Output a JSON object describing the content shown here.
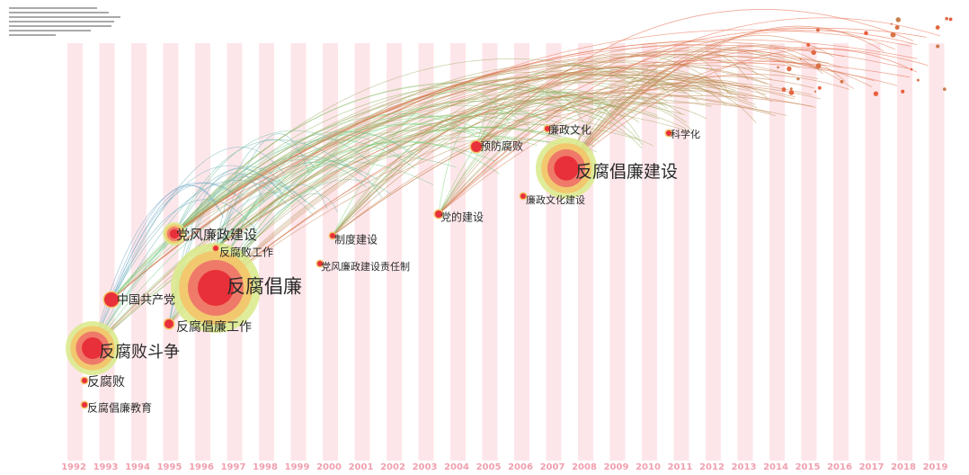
{
  "years": [
    "1992",
    "1993",
    "1994",
    "1995",
    "1996",
    "1997",
    "1998",
    "1999",
    "2000",
    "2001",
    "2002",
    "2003",
    "2004",
    "2005",
    "2006",
    "2007",
    "2008",
    "2009",
    "2010",
    "2011",
    "2012",
    "2013",
    "2014",
    "2015",
    "2016",
    "2017",
    "2018",
    "2019"
  ],
  "keywords": [
    {
      "id": "k1",
      "label": "反腐倡廉建设",
      "year": "2007",
      "size": "large"
    },
    {
      "id": "k2",
      "label": "反腐倡廉",
      "year": "1996",
      "size": "large"
    },
    {
      "id": "k3",
      "label": "反腐败斗争",
      "year": "1992",
      "size": "large"
    },
    {
      "id": "k4",
      "label": "党风廉政建设",
      "year": "1995",
      "size": "medium"
    },
    {
      "id": "k5",
      "label": "中国共产党",
      "year": "1993",
      "size": "medium"
    },
    {
      "id": "k6",
      "label": "反腐倡廉工作",
      "year": "1995",
      "size": "small"
    },
    {
      "id": "k7",
      "label": "反腐败",
      "year": "1992",
      "size": "small"
    },
    {
      "id": "k8",
      "label": "反腐倡廉教育",
      "year": "1992",
      "size": "small"
    },
    {
      "id": "k9",
      "label": "反腐败工作",
      "year": "1997",
      "size": "small"
    },
    {
      "id": "k10",
      "label": "制度建设",
      "year": "2000",
      "size": "small"
    },
    {
      "id": "k11",
      "label": "党风廉政建设责任制",
      "year": "1999",
      "size": "small"
    },
    {
      "id": "k12",
      "label": "党的建设",
      "year": "2004",
      "size": "small"
    },
    {
      "id": "k13",
      "label": "预防腐败",
      "year": "2005",
      "size": "small"
    },
    {
      "id": "k14",
      "label": "廉政文化",
      "year": "2007",
      "size": "small"
    },
    {
      "id": "k15",
      "label": "廉政文化建设",
      "year": "2007",
      "size": "small"
    },
    {
      "id": "k16",
      "label": "科学化",
      "year": "2010",
      "size": "small"
    }
  ],
  "colors": {
    "stripe": "#fde6ea",
    "year_text": "#f0a0ae",
    "link_old": "#6a8cf0",
    "link_mid": "#74d87a",
    "link_new": "#ee5b3c",
    "node_core": "#e8303a"
  }
}
